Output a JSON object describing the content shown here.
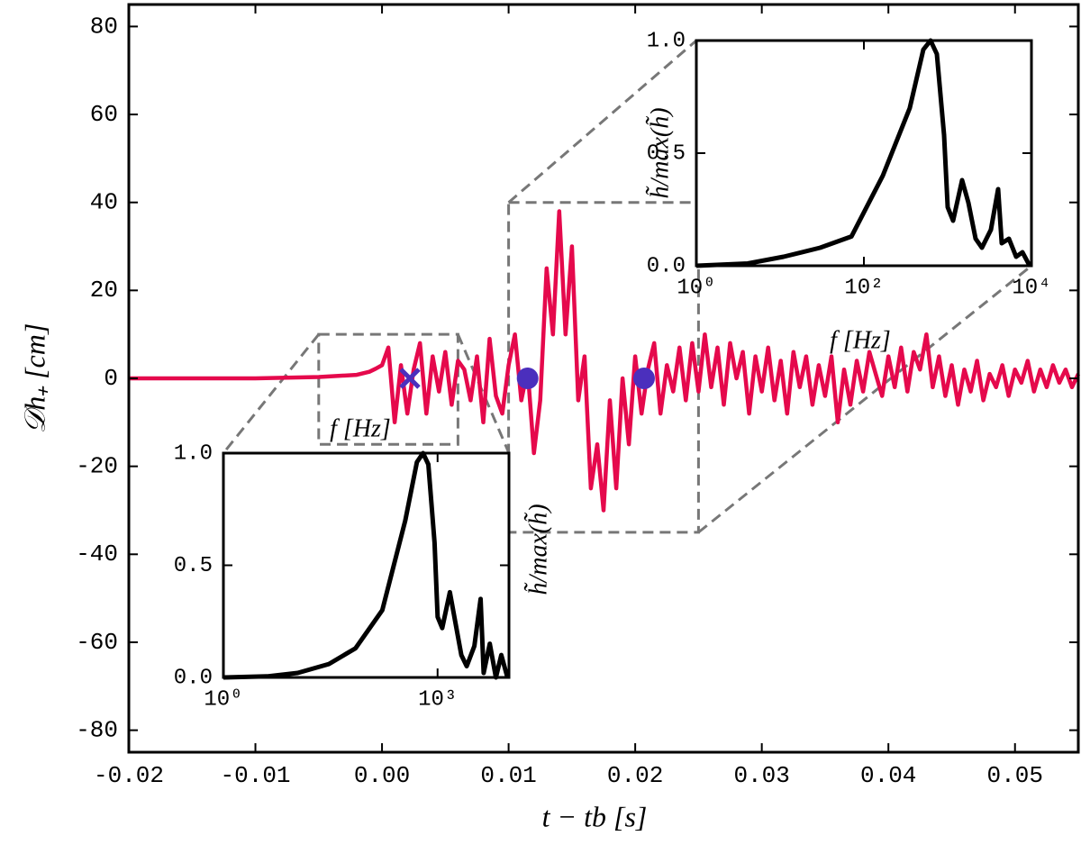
{
  "chart_data": [
    {
      "type": "line",
      "xlabel": "t − tb  [s]",
      "ylabel": "𝒟h₊  [cm]",
      "x": [
        -0.02,
        -0.01,
        -0.005,
        -0.002,
        -0.001,
        -0.0005,
        0.0,
        0.0005,
        0.001,
        0.0015,
        0.002,
        0.0025,
        0.003,
        0.0035,
        0.004,
        0.0045,
        0.005,
        0.0055,
        0.006,
        0.0065,
        0.007,
        0.0075,
        0.008,
        0.0085,
        0.009,
        0.0095,
        0.01,
        0.0105,
        0.011,
        0.0115,
        0.012,
        0.0125,
        0.013,
        0.0135,
        0.014,
        0.0145,
        0.015,
        0.0155,
        0.016,
        0.0165,
        0.017,
        0.0175,
        0.018,
        0.0185,
        0.019,
        0.0195,
        0.02,
        0.0205,
        0.021,
        0.0215,
        0.022,
        0.0225,
        0.023,
        0.0235,
        0.024,
        0.0245,
        0.025,
        0.0255,
        0.026,
        0.0265,
        0.027,
        0.0275,
        0.028,
        0.0285,
        0.029,
        0.0295,
        0.03,
        0.0305,
        0.031,
        0.0315,
        0.032,
        0.0325,
        0.033,
        0.0335,
        0.034,
        0.0345,
        0.035,
        0.0355,
        0.036,
        0.0365,
        0.037,
        0.0375,
        0.038,
        0.0385,
        0.039,
        0.0395,
        0.04,
        0.0405,
        0.041,
        0.0415,
        0.042,
        0.0425,
        0.043,
        0.0435,
        0.044,
        0.0445,
        0.045,
        0.0455,
        0.046,
        0.0465,
        0.047,
        0.0475,
        0.048,
        0.0485,
        0.049,
        0.0495,
        0.05,
        0.0505,
        0.051,
        0.0515,
        0.052,
        0.0525,
        0.053,
        0.0535,
        0.054,
        0.0545,
        0.055
      ],
      "series": [
        {
          "color": "#e5094c",
          "values": [
            0,
            0,
            0.3,
            0.8,
            1.5,
            2.2,
            3,
            7,
            -10,
            3,
            -8,
            2,
            8,
            -8,
            5,
            -3,
            6,
            -6,
            4,
            2,
            -5,
            5,
            -10,
            9,
            -4,
            -8,
            3,
            10,
            -5,
            2,
            -17,
            -5,
            25,
            10,
            38,
            10,
            30,
            -5,
            5,
            -25,
            -15,
            -30,
            -5,
            -25,
            0,
            -15,
            5,
            -8,
            2,
            8,
            -8,
            3,
            -3,
            7,
            -5,
            8,
            -3,
            10,
            -2,
            7,
            -6,
            8,
            0,
            6,
            -8,
            5,
            -3,
            7,
            -5,
            4,
            -8,
            6,
            -2,
            5,
            -6,
            3,
            -4,
            5,
            -10,
            2,
            -6,
            4,
            -3,
            6,
            1,
            -4,
            5,
            -2,
            7,
            -3,
            6,
            2,
            10,
            -2,
            5,
            -4,
            3,
            -6,
            2,
            -3,
            4,
            -5,
            1,
            -2,
            3,
            -4,
            2,
            -1,
            4,
            -3,
            2,
            -2,
            3,
            -1,
            2,
            -2,
            1
          ]
        }
      ],
      "markers": [
        {
          "shape": "x",
          "x": 0.0022,
          "y": 0,
          "color": "#4b2fbd"
        },
        {
          "shape": "circle",
          "x": 0.0115,
          "y": 0,
          "color": "#4b2fbd"
        },
        {
          "shape": "circle",
          "x": 0.0207,
          "y": 0,
          "color": "#4b2fbd"
        }
      ],
      "zoom_regions": [
        {
          "xlim": [
            -0.005,
            0.006
          ],
          "ylim": [
            -15,
            10
          ]
        },
        {
          "xlim": [
            0.01,
            0.025
          ],
          "ylim": [
            -35,
            40
          ]
        }
      ],
      "xlim": [
        -0.02,
        0.055
      ],
      "ylim": [
        -85,
        85
      ],
      "xticks": [
        -0.02,
        -0.01,
        {
          "value": 0,
          "label": "0.00"
        },
        0.01,
        0.02,
        0.03,
        0.04,
        0.05
      ],
      "yticks": [
        -80,
        -60,
        -40,
        -20,
        0,
        20,
        40,
        60,
        80
      ]
    },
    {
      "type": "line",
      "log_x": true,
      "xlabel": "f [Hz]",
      "ylabel": "h̃/max(h̃)",
      "x": [
        1,
        4.1,
        11,
        30,
        71,
        168,
        353,
        513,
        625,
        743,
        906,
        1000,
        1161,
        1486,
        1766,
        2153,
        2563,
        3281,
        4000,
        4416,
        5383,
        6561,
        7803,
        9510
      ],
      "series": [
        {
          "color": "#000000",
          "values": [
            0,
            0.005,
            0.02,
            0.06,
            0.13,
            0.3,
            0.7,
            0.96,
            1.0,
            0.95,
            0.6,
            0.27,
            0.22,
            0.38,
            0.25,
            0.1,
            0.05,
            0.14,
            0.35,
            0.02,
            0.15,
            0.0,
            0.1,
            0.0
          ]
        }
      ],
      "xlim": [
        1,
        10000
      ],
      "ylim": [
        0,
        1
      ],
      "xticks": [
        {
          "value": 1,
          "label": "10⁰"
        },
        {
          "value": 1000,
          "label": "10³"
        }
      ],
      "yticks": [
        {
          "value": 0,
          "label": "0.0"
        },
        0.5,
        {
          "value": 1,
          "label": "1.0"
        }
      ]
    },
    {
      "type": "line",
      "log_x": true,
      "xlabel": "f [Hz]",
      "ylabel": "h̃/max(h̃)",
      "x": [
        1,
        4.1,
        11,
        30,
        71,
        168,
        353,
        513,
        625,
        743,
        906,
        1000,
        1161,
        1486,
        1766,
        2153,
        2563,
        3281,
        4000,
        4416,
        5383,
        6561,
        7803,
        9510
      ],
      "series": [
        {
          "color": "#000000",
          "values": [
            0,
            0.01,
            0.04,
            0.08,
            0.13,
            0.4,
            0.7,
            0.96,
            1.0,
            0.94,
            0.58,
            0.26,
            0.2,
            0.38,
            0.28,
            0.12,
            0.08,
            0.16,
            0.34,
            0.1,
            0.12,
            0.04,
            0.06,
            0.0
          ]
        }
      ],
      "xlim": [
        1,
        10000
      ],
      "ylim": [
        0,
        1
      ],
      "xticks": [
        {
          "value": 1,
          "label": "10⁰"
        },
        {
          "value": 100,
          "label": "10²"
        },
        {
          "value": 10000,
          "label": "10⁴"
        }
      ],
      "yticks": [
        {
          "value": 0,
          "label": "0.0"
        },
        0.5,
        {
          "value": 1,
          "label": "1.0"
        }
      ]
    }
  ]
}
